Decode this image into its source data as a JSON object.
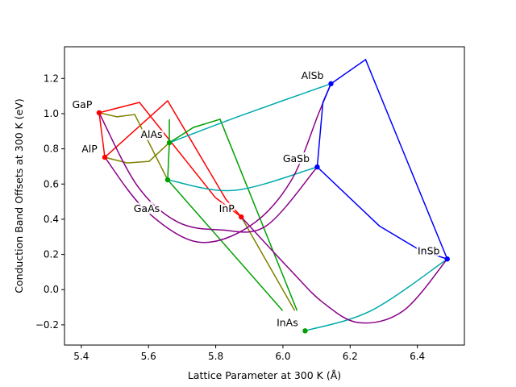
{
  "chart_data": {
    "type": "scatter",
    "title": "",
    "xlabel": "Lattice Parameter at 300 K (Å)",
    "ylabel": "Conduction Band Offsets at 300 K (eV)",
    "xlim": [
      5.35,
      6.54
    ],
    "ylim": [
      -0.315,
      1.38
    ],
    "xticks": [
      5.4,
      5.6,
      5.8,
      6.0,
      6.2,
      6.4
    ],
    "xtick_labels": [
      "5.4",
      "5.6",
      "5.8",
      "6.0",
      "6.2",
      "6.4"
    ],
    "yticks": [
      -0.2,
      0.0,
      0.2,
      0.4,
      0.6,
      0.8,
      1.0,
      1.2
    ],
    "ytick_labels": [
      "−0.2",
      "0.0",
      "0.2",
      "0.4",
      "0.6",
      "0.8",
      "1.0",
      "1.2"
    ],
    "grid": false,
    "points": [
      {
        "label": "GaP",
        "x": 5.453,
        "y": 1.005,
        "color": "#ff0000"
      },
      {
        "label": "AlP",
        "x": 5.47,
        "y": 0.752,
        "color": "#ff0000"
      },
      {
        "label": "InP",
        "x": 5.876,
        "y": 0.413,
        "color": "#ff0000"
      },
      {
        "label": "AlAs",
        "x": 5.662,
        "y": 0.835,
        "color": "#00a000"
      },
      {
        "label": "GaAs",
        "x": 5.657,
        "y": 0.624,
        "color": "#00a000"
      },
      {
        "label": "InAs",
        "x": 6.066,
        "y": -0.234,
        "color": "#00a000"
      },
      {
        "label": "AlSb",
        "x": 6.143,
        "y": 1.17,
        "color": "#0000ff"
      },
      {
        "label": "GaSb",
        "x": 6.102,
        "y": 0.697,
        "color": "#0000ff"
      },
      {
        "label": "InSb",
        "x": 6.489,
        "y": 0.174,
        "color": "#0000ff"
      }
    ],
    "curves": [
      {
        "color": "#ff0000",
        "points": [
          [
            5.453,
            1.005
          ],
          [
            5.573,
            1.064
          ],
          [
            5.799,
            0.523
          ],
          [
            5.876,
            0.413
          ]
        ]
      },
      {
        "color": "#ff0000",
        "points": [
          [
            5.47,
            0.752
          ],
          [
            5.657,
            1.073
          ],
          [
            5.83,
            0.514
          ],
          [
            5.876,
            0.413
          ]
        ]
      },
      {
        "color": "#ff0000",
        "points": [
          [
            5.453,
            1.005
          ],
          [
            5.47,
            0.752
          ]
        ]
      },
      {
        "color": "#808000",
        "points": [
          [
            5.453,
            1.005
          ],
          [
            5.506,
            0.982
          ],
          [
            5.559,
            0.995
          ],
          [
            5.657,
            0.624
          ]
        ]
      },
      {
        "color": "#808000",
        "points": [
          [
            5.47,
            0.752
          ],
          [
            5.537,
            0.72
          ],
          [
            5.602,
            0.729
          ],
          [
            5.662,
            0.835
          ]
        ]
      },
      {
        "color": "#808000",
        "points": [
          [
            5.876,
            0.413
          ],
          [
            6.035,
            -0.119
          ]
        ]
      },
      {
        "color": "#00a000",
        "points": [
          [
            5.662,
            0.835
          ],
          [
            5.662,
            0.968
          ]
        ]
      },
      {
        "color": "#00a000",
        "points": [
          [
            5.662,
            0.835
          ],
          [
            5.657,
            0.624
          ]
        ]
      },
      {
        "color": "#00a000",
        "points": [
          [
            5.662,
            0.835
          ],
          [
            5.734,
            0.922
          ],
          [
            5.813,
            0.968
          ],
          [
            6.042,
            -0.119
          ]
        ]
      },
      {
        "color": "#00a000",
        "points": [
          [
            5.657,
            0.624
          ],
          [
            5.999,
            -0.119
          ]
        ]
      },
      {
        "color": "#00aaaa",
        "points": [
          [
            5.662,
            0.835
          ],
          [
            5.878,
            0.991
          ],
          [
            6.143,
            1.17
          ]
        ]
      },
      {
        "color": "#00aaaa",
        "points": [
          [
            5.657,
            0.624
          ],
          [
            5.854,
            0.564
          ],
          [
            6.102,
            0.697
          ]
        ]
      },
      {
        "color": "#00aaaa",
        "points": [
          [
            6.066,
            -0.234
          ],
          [
            6.263,
            -0.119
          ],
          [
            6.489,
            0.174
          ]
        ]
      },
      {
        "color": "#880088",
        "points": [
          [
            5.47,
            0.752
          ],
          [
            5.59,
            0.454
          ],
          [
            5.746,
            0.271
          ],
          [
            5.902,
            0.362
          ],
          [
            6.023,
            0.615
          ],
          [
            6.107,
            1.005
          ],
          [
            6.143,
            1.17
          ]
        ]
      },
      {
        "color": "#880088",
        "points": [
          [
            5.453,
            1.005
          ],
          [
            5.566,
            0.592
          ],
          [
            5.686,
            0.385
          ],
          [
            5.818,
            0.339
          ],
          [
            5.95,
            0.362
          ],
          [
            6.102,
            0.697
          ]
        ]
      },
      {
        "color": "#880088",
        "points": [
          [
            5.876,
            0.413
          ],
          [
            6.023,
            0.11
          ],
          [
            6.119,
            -0.073
          ],
          [
            6.227,
            -0.188
          ],
          [
            6.359,
            -0.119
          ],
          [
            6.489,
            0.174
          ]
        ]
      },
      {
        "color": "#0000ff",
        "points": [
          [
            6.143,
            1.17
          ],
          [
            6.246,
            1.307
          ],
          [
            6.489,
            0.174
          ]
        ]
      },
      {
        "color": "#0000ff",
        "points": [
          [
            6.143,
            1.17
          ],
          [
            6.119,
            1.064
          ],
          [
            6.102,
            0.697
          ]
        ]
      },
      {
        "color": "#0000ff",
        "points": [
          [
            6.102,
            0.697
          ],
          [
            6.287,
            0.362
          ],
          [
            6.407,
            0.225
          ],
          [
            6.489,
            0.174
          ]
        ]
      }
    ]
  }
}
